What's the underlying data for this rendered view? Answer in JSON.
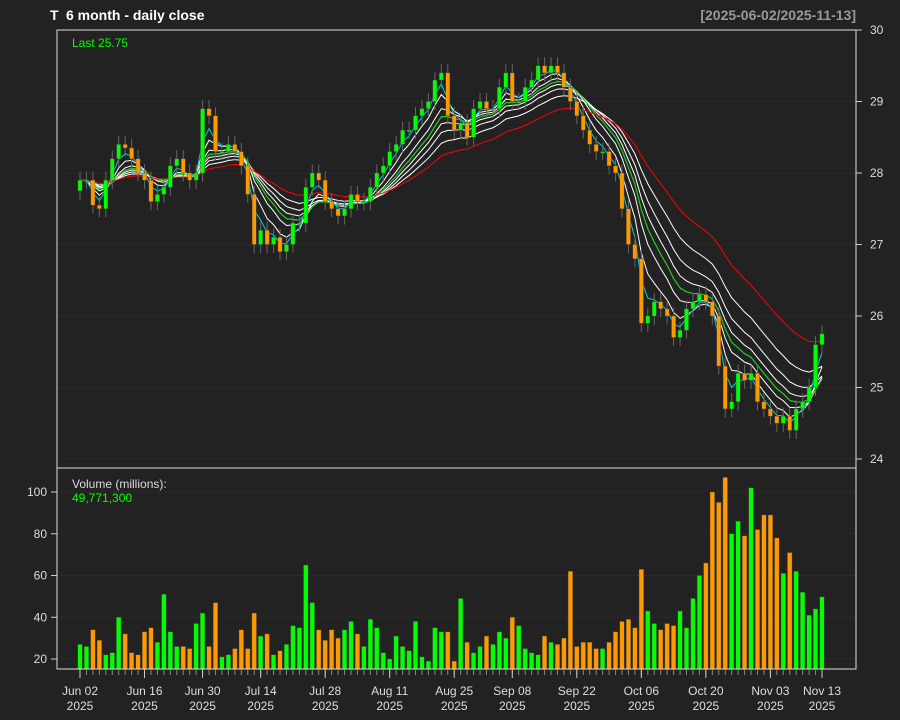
{
  "header": {
    "symbol": "T",
    "title": "6 month - daily close",
    "date_range": "[2025-06-02/2025-11-13]"
  },
  "price_panel": {
    "last_label": "Last 25.75"
  },
  "volume_panel": {
    "label": "Volume (millions):",
    "last_value": "49,771,300"
  },
  "colors": {
    "background": "#222222",
    "up": "#00ff00",
    "down": "#ff9900",
    "last_text": "#00ff00",
    "ema_fast": "#00ced1",
    "ema_mid": "#00cc00",
    "ema_slow": "#ff0000",
    "ema_other": "#ffffff"
  },
  "chart_data": [
    {
      "type": "candlestick",
      "title": "T 6 month - daily close",
      "first_date": "2025-06-02",
      "last_date": "2025-11-13",
      "first_open": 27.75,
      "close": [
        27.9,
        27.9,
        27.55,
        27.5,
        27.9,
        28.2,
        28.4,
        28.35,
        28.2,
        28.0,
        27.9,
        27.6,
        27.7,
        27.8,
        28.1,
        28.2,
        28.0,
        27.9,
        28.0,
        28.9,
        28.8,
        28.3,
        28.3,
        28.4,
        28.3,
        28.1,
        27.7,
        27.0,
        27.2,
        27.0,
        27.1,
        26.9,
        27.0,
        27.3,
        27.3,
        27.8,
        28.0,
        27.9,
        27.6,
        27.5,
        27.4,
        27.5,
        27.7,
        27.6,
        27.6,
        27.8,
        28.0,
        28.1,
        28.3,
        28.4,
        28.6,
        28.6,
        28.8,
        28.9,
        29.0,
        29.3,
        29.4,
        28.8,
        28.6,
        28.7,
        28.5,
        28.9,
        29.0,
        28.9,
        28.9,
        29.2,
        29.4,
        29.0,
        29.0,
        29.2,
        29.3,
        29.5,
        29.4,
        29.5,
        29.4,
        29.2,
        29.0,
        28.8,
        28.6,
        28.4,
        28.3,
        28.3,
        28.1,
        28.0,
        27.5,
        27.0,
        26.8,
        25.9,
        26.0,
        26.2,
        26.1,
        26.0,
        25.7,
        25.8,
        26.1,
        26.2,
        26.3,
        26.2,
        26.0,
        25.3,
        24.7,
        24.8,
        25.2,
        25.1,
        25.2,
        24.8,
        24.7,
        24.6,
        24.5,
        24.6,
        24.4,
        24.7,
        24.8,
        25.0,
        25.6,
        25.75
      ],
      "ylim": [
        24,
        30
      ],
      "y_ticks": [
        24,
        25,
        26,
        27,
        28,
        29,
        30
      ],
      "axis_side": "right",
      "grid": true,
      "overlays": {
        "type": "EMA",
        "periods_white": [
          5,
          8,
          10,
          12,
          15,
          20
        ],
        "period_cyan": 3,
        "period_green": 10,
        "period_red": 30
      }
    },
    {
      "type": "bar",
      "ylabel": "Volume (millions)",
      "values": [
        27,
        26,
        34,
        29,
        22,
        23,
        40,
        32,
        23,
        22,
        33,
        35,
        28,
        51,
        33,
        26,
        26,
        25,
        37,
        42,
        26,
        47,
        21,
        22,
        25,
        34,
        25,
        42,
        31,
        32,
        22,
        24,
        27,
        36,
        35,
        65,
        47,
        34,
        29,
        34,
        30,
        34,
        38,
        32,
        26,
        39,
        35,
        23,
        20,
        31,
        26,
        24,
        38,
        21,
        19,
        35,
        33,
        33,
        19,
        49,
        28,
        23,
        26,
        31,
        27,
        33,
        30,
        40,
        36,
        25,
        23,
        22,
        31,
        28,
        27,
        30,
        62,
        26,
        28,
        28,
        25,
        25,
        28,
        33,
        38,
        39,
        35,
        63,
        43,
        37,
        34,
        37,
        36,
        43,
        35,
        49,
        60,
        66,
        100,
        95,
        107,
        80,
        86,
        79,
        102,
        82,
        89,
        89,
        78,
        61,
        71,
        62,
        52,
        41,
        44,
        49.77
      ],
      "ylim": [
        15,
        110
      ],
      "y_ticks": [
        20,
        40,
        60,
        80,
        100
      ],
      "axis_side": "left",
      "grid": true
    }
  ],
  "x_axis": {
    "ticks": [
      {
        "date": "2025-06-02",
        "line1": "Jun 02",
        "line2": "2025"
      },
      {
        "date": "2025-06-16",
        "line1": "Jun 16",
        "line2": "2025"
      },
      {
        "date": "2025-06-30",
        "line1": "Jun 30",
        "line2": "2025"
      },
      {
        "date": "2025-07-14",
        "line1": "Jul 14",
        "line2": "2025"
      },
      {
        "date": "2025-07-28",
        "line1": "Jul 28",
        "line2": "2025"
      },
      {
        "date": "2025-08-11",
        "line1": "Aug 11",
        "line2": "2025"
      },
      {
        "date": "2025-08-25",
        "line1": "Aug 25",
        "line2": "2025"
      },
      {
        "date": "2025-09-08",
        "line1": "Sep 08",
        "line2": "2025"
      },
      {
        "date": "2025-09-22",
        "line1": "Sep 22",
        "line2": "2025"
      },
      {
        "date": "2025-10-06",
        "line1": "Oct 06",
        "line2": "2025"
      },
      {
        "date": "2025-10-20",
        "line1": "Oct 20",
        "line2": "2025"
      },
      {
        "date": "2025-11-03",
        "line1": "Nov 03",
        "line2": "2025"
      },
      {
        "date": "2025-11-13",
        "line1": "Nov 13",
        "line2": "2025"
      }
    ]
  }
}
